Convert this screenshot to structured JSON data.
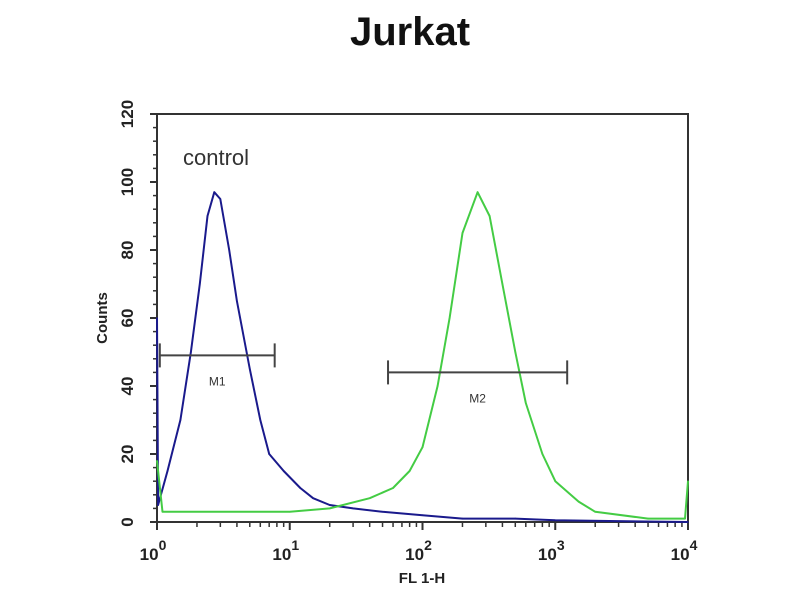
{
  "chart_data": {
    "type": "line",
    "title": "Jurkat",
    "xlabel": "FL 1-H",
    "ylabel": "Counts",
    "xscale": "log",
    "xlim": [
      1,
      10000
    ],
    "ylim": [
      0,
      120
    ],
    "x_ticks": [
      {
        "base": "10",
        "exp": "0"
      },
      {
        "base": "10",
        "exp": "1"
      },
      {
        "base": "10",
        "exp": "2"
      },
      {
        "base": "10",
        "exp": "3"
      },
      {
        "base": "10",
        "exp": "4"
      }
    ],
    "y_ticks": [
      "0",
      "20",
      "40",
      "60",
      "80",
      "100",
      "120"
    ],
    "annotation": "control",
    "grid": false,
    "series": [
      {
        "color": "#1a1a8c",
        "points": [
          [
            1,
            60
          ],
          [
            1.02,
            5
          ],
          [
            1.2,
            15
          ],
          [
            1.5,
            30
          ],
          [
            1.8,
            50
          ],
          [
            2.1,
            70
          ],
          [
            2.4,
            90
          ],
          [
            2.7,
            97
          ],
          [
            3.0,
            95
          ],
          [
            3.5,
            80
          ],
          [
            4,
            65
          ],
          [
            5,
            45
          ],
          [
            6,
            30
          ],
          [
            7,
            20
          ],
          [
            9,
            15
          ],
          [
            12,
            10
          ],
          [
            15,
            7
          ],
          [
            20,
            5
          ],
          [
            30,
            4
          ],
          [
            50,
            3
          ],
          [
            100,
            2
          ],
          [
            200,
            1
          ],
          [
            500,
            1
          ],
          [
            1000,
            0.5
          ],
          [
            10000,
            0
          ]
        ]
      },
      {
        "color": "#44cc44",
        "points": [
          [
            1,
            18
          ],
          [
            1.1,
            3
          ],
          [
            10,
            3
          ],
          [
            20,
            4
          ],
          [
            40,
            7
          ],
          [
            60,
            10
          ],
          [
            80,
            15
          ],
          [
            100,
            22
          ],
          [
            130,
            40
          ],
          [
            160,
            60
          ],
          [
            200,
            85
          ],
          [
            260,
            97
          ],
          [
            320,
            90
          ],
          [
            400,
            70
          ],
          [
            500,
            50
          ],
          [
            600,
            35
          ],
          [
            800,
            20
          ],
          [
            1000,
            12
          ],
          [
            1500,
            6
          ],
          [
            2000,
            3
          ],
          [
            5000,
            1
          ],
          [
            9500,
            1
          ],
          [
            10000,
            12
          ]
        ]
      }
    ],
    "gates": [
      {
        "label": "M1",
        "x_range": [
          1.05,
          7.7
        ],
        "y": 49
      },
      {
        "label": "M2",
        "x_range": [
          55,
          1230
        ],
        "y": 44
      }
    ]
  }
}
